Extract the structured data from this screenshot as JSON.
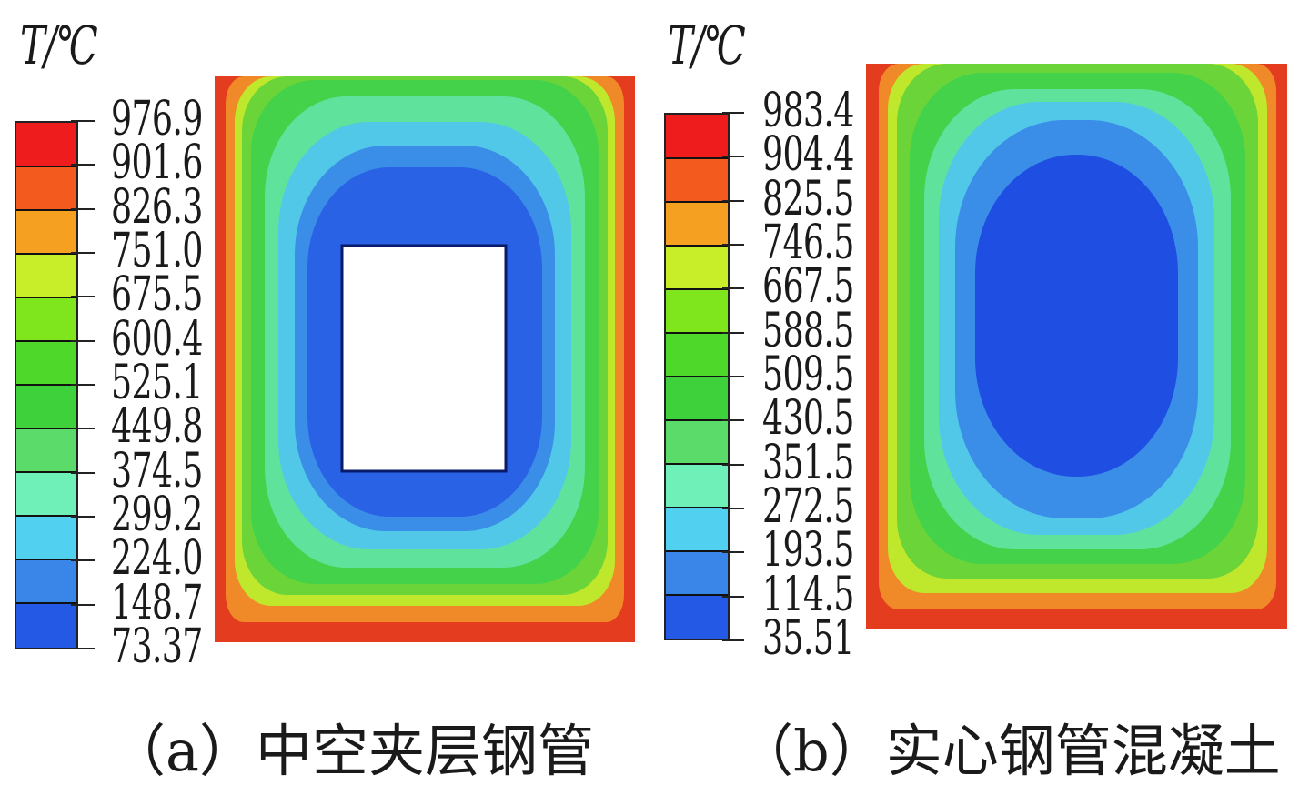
{
  "panels": [
    {
      "id": "a",
      "unit_label": "T/℃",
      "legend_values": [
        "976.9",
        "901.6",
        "826.3",
        "751.0",
        "675.5",
        "600.4",
        "525.1",
        "449.8",
        "374.5",
        "299.2",
        "224.0",
        "148.7",
        "73.37"
      ],
      "caption": "（a）中空夹层钢管",
      "has_hollow_core": true
    },
    {
      "id": "b",
      "unit_label": "T/℃",
      "legend_values": [
        "983.4",
        "904.4",
        "825.5",
        "746.5",
        "667.5",
        "588.5",
        "509.5",
        "430.5",
        "351.5",
        "272.5",
        "193.5",
        "114.5",
        "35.51"
      ],
      "caption": "（b）实心钢管混凝土",
      "has_hollow_core": false
    }
  ],
  "colors": {
    "legend_bands": [
      "#ee1c1c",
      "#f25a1e",
      "#f5a021",
      "#c8ee2a",
      "#7fe61e",
      "#4ed82a",
      "#3fd13c",
      "#5bdc6a",
      "#6ff0b8",
      "#52d0f0",
      "#3a86e8",
      "#2459e6"
    ],
    "field_zones": [
      "#e43c1e",
      "#f08a28",
      "#bfe82c",
      "#6ad438",
      "#43d24a",
      "#5fe39c",
      "#52c8e8",
      "#3a8ee8",
      "#2a62e6",
      "#1f4fe2"
    ],
    "core": "#ffffff"
  }
}
